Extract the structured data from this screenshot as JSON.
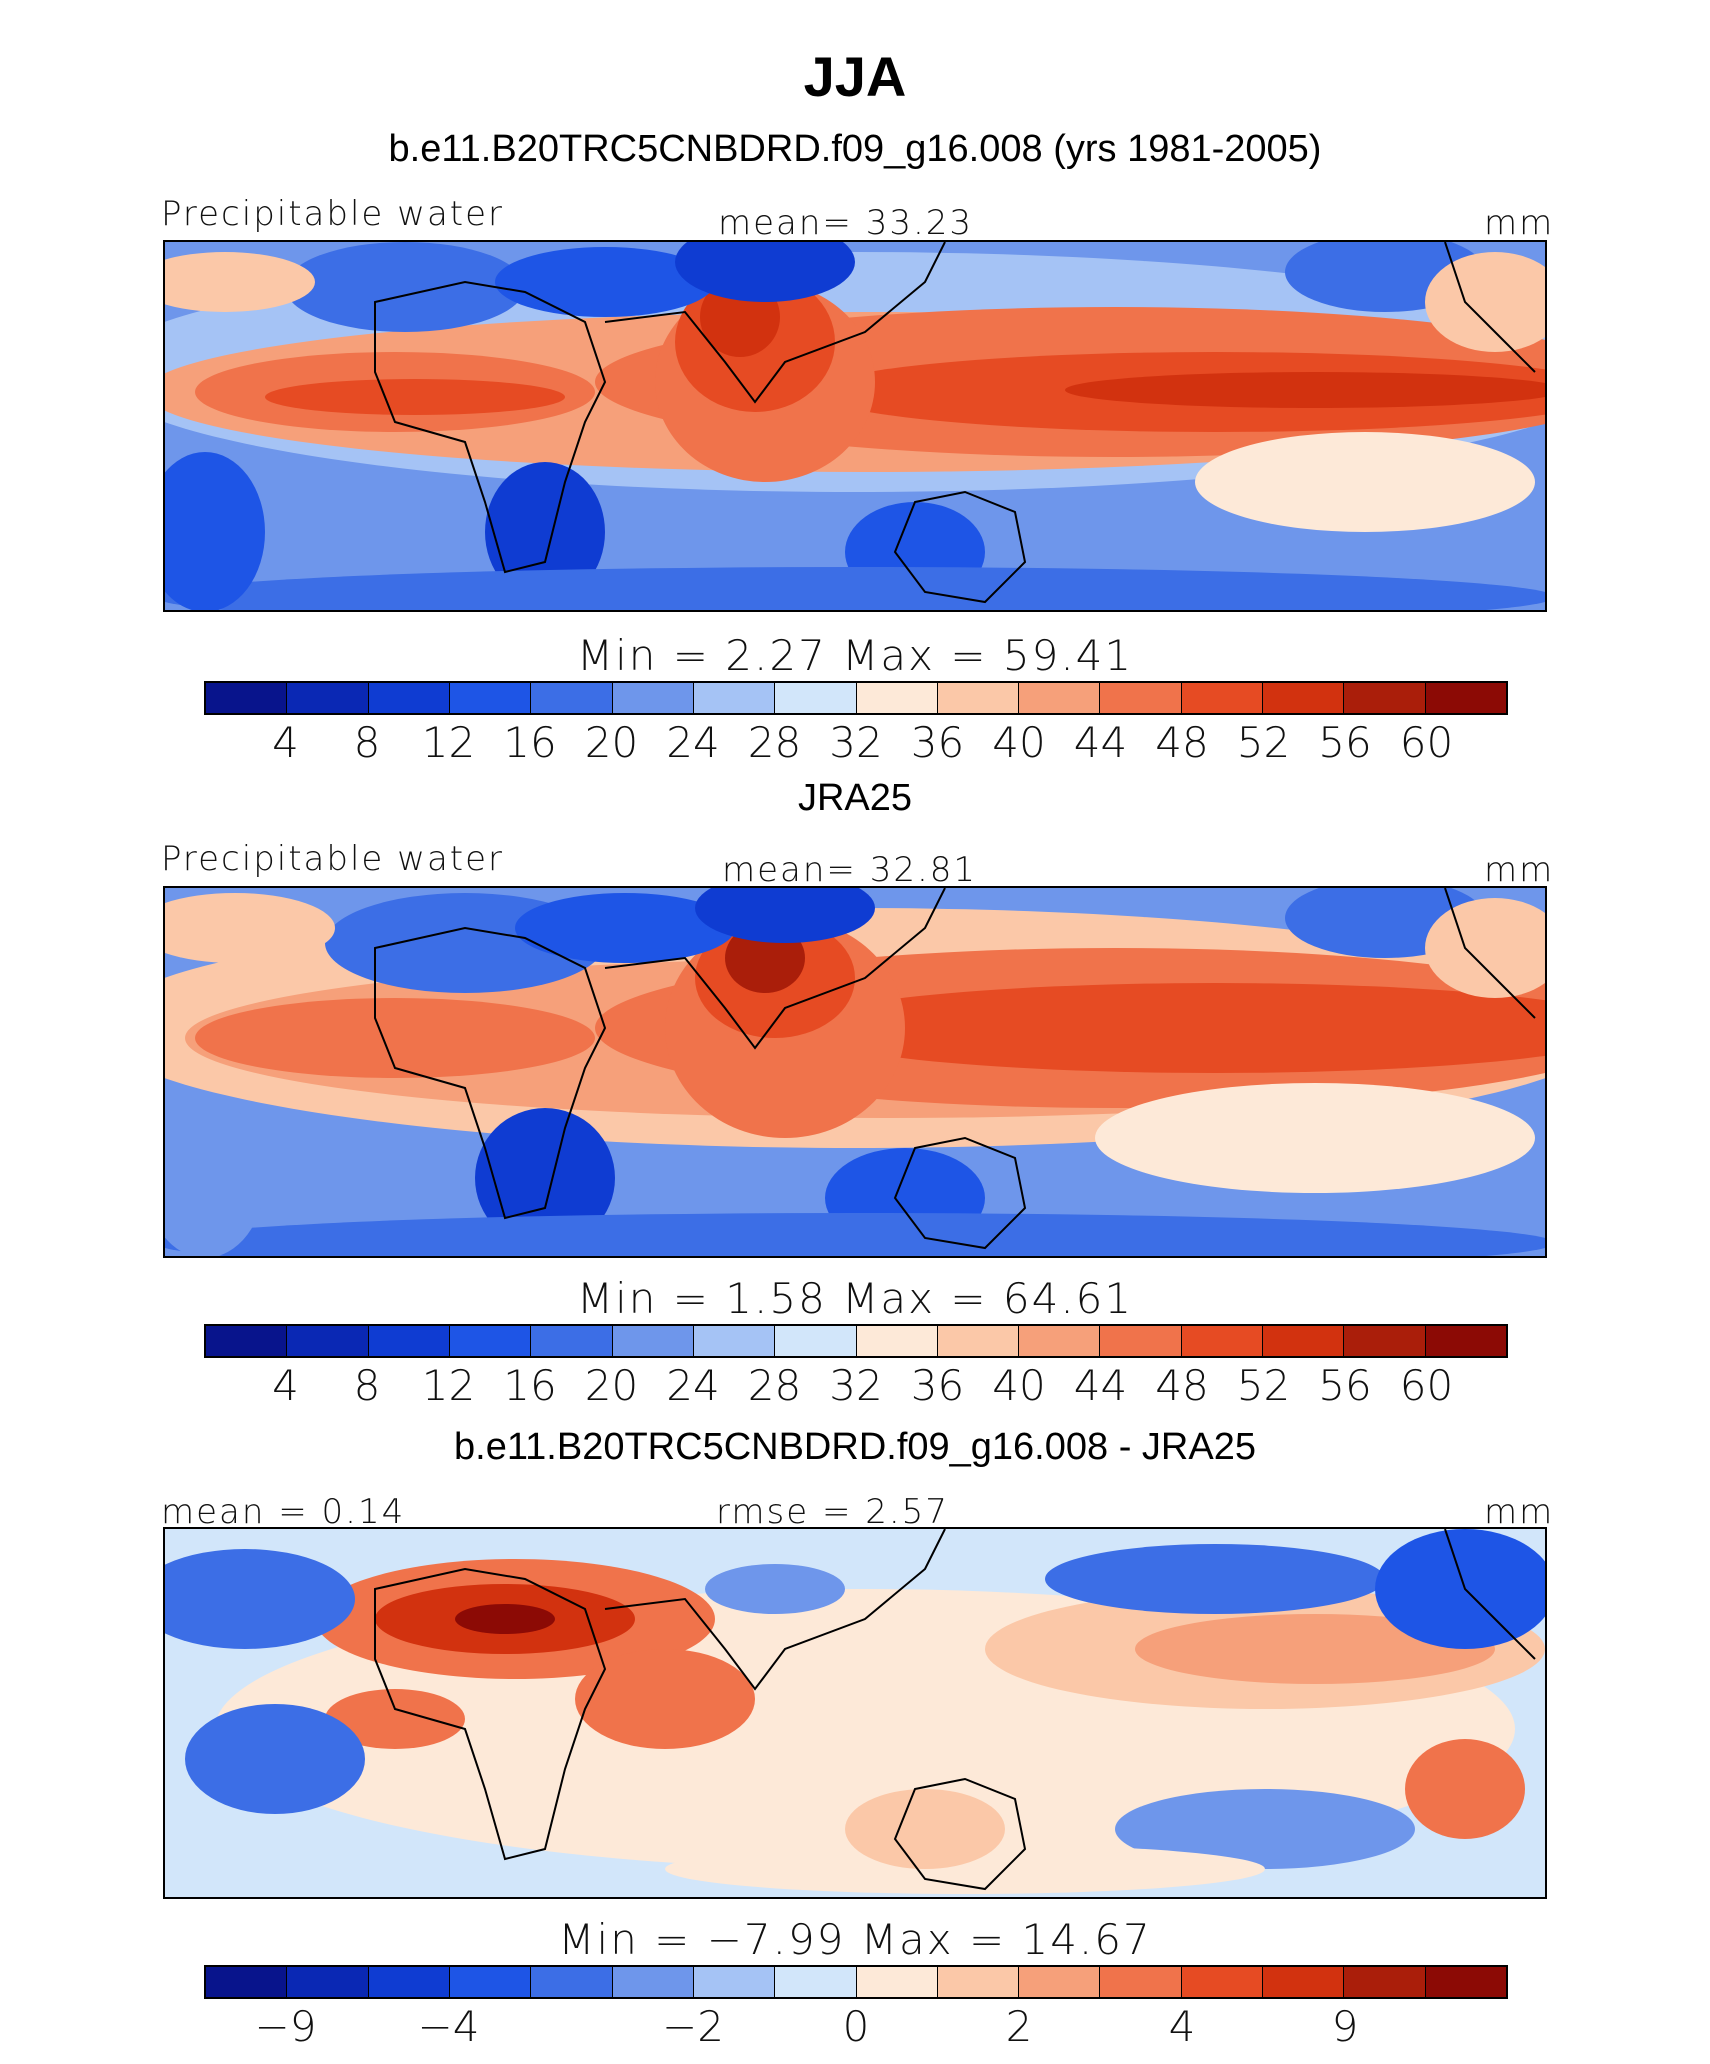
{
  "title": "JJA",
  "colors": [
    "#08148c",
    "#0a28b4",
    "#0f3cd2",
    "#1e55e6",
    "#3c6ee6",
    "#6e96eb",
    "#a5c3f5",
    "#d2e6fa",
    "#fde9d8",
    "#fbc8a8",
    "#f6a07a",
    "#f0734b",
    "#e64b23",
    "#d2320f",
    "#aa1e0a",
    "#8c0a05"
  ],
  "panels": [
    {
      "title": "b.e11.B20TRC5CNBDRD.f09_g16.008 (yrs 1981-2005)",
      "left_label": "Precipitable water",
      "center_label": "mean=   33.23",
      "units": "mm",
      "minmax": "Min  =      2.27  Max  =    59.41",
      "ticks": [
        "4",
        "8",
        "12",
        "16",
        "20",
        "24",
        "28",
        "32",
        "36",
        "40",
        "44",
        "48",
        "52",
        "56",
        "60"
      ]
    },
    {
      "title": "JRA25",
      "left_label": "Precipitable water",
      "center_label": "mean=   32.81",
      "units": "mm",
      "minmax": "Min  =      1.58  Max  =    64.61",
      "ticks": [
        "4",
        "8",
        "12",
        "16",
        "20",
        "24",
        "28",
        "32",
        "36",
        "40",
        "44",
        "48",
        "52",
        "56",
        "60"
      ]
    },
    {
      "title": "b.e11.B20TRC5CNBDRD.f09_g16.008 - JRA25",
      "left_label": "mean =    0.14",
      "center_label": "rmse  =     2.57",
      "units": "mm",
      "minmax": "Min  =   −7.99  Max  =    14.67",
      "ticks": [
        "−9",
        "−4",
        "−2",
        "0",
        "2",
        "4",
        "9"
      ]
    }
  ]
}
